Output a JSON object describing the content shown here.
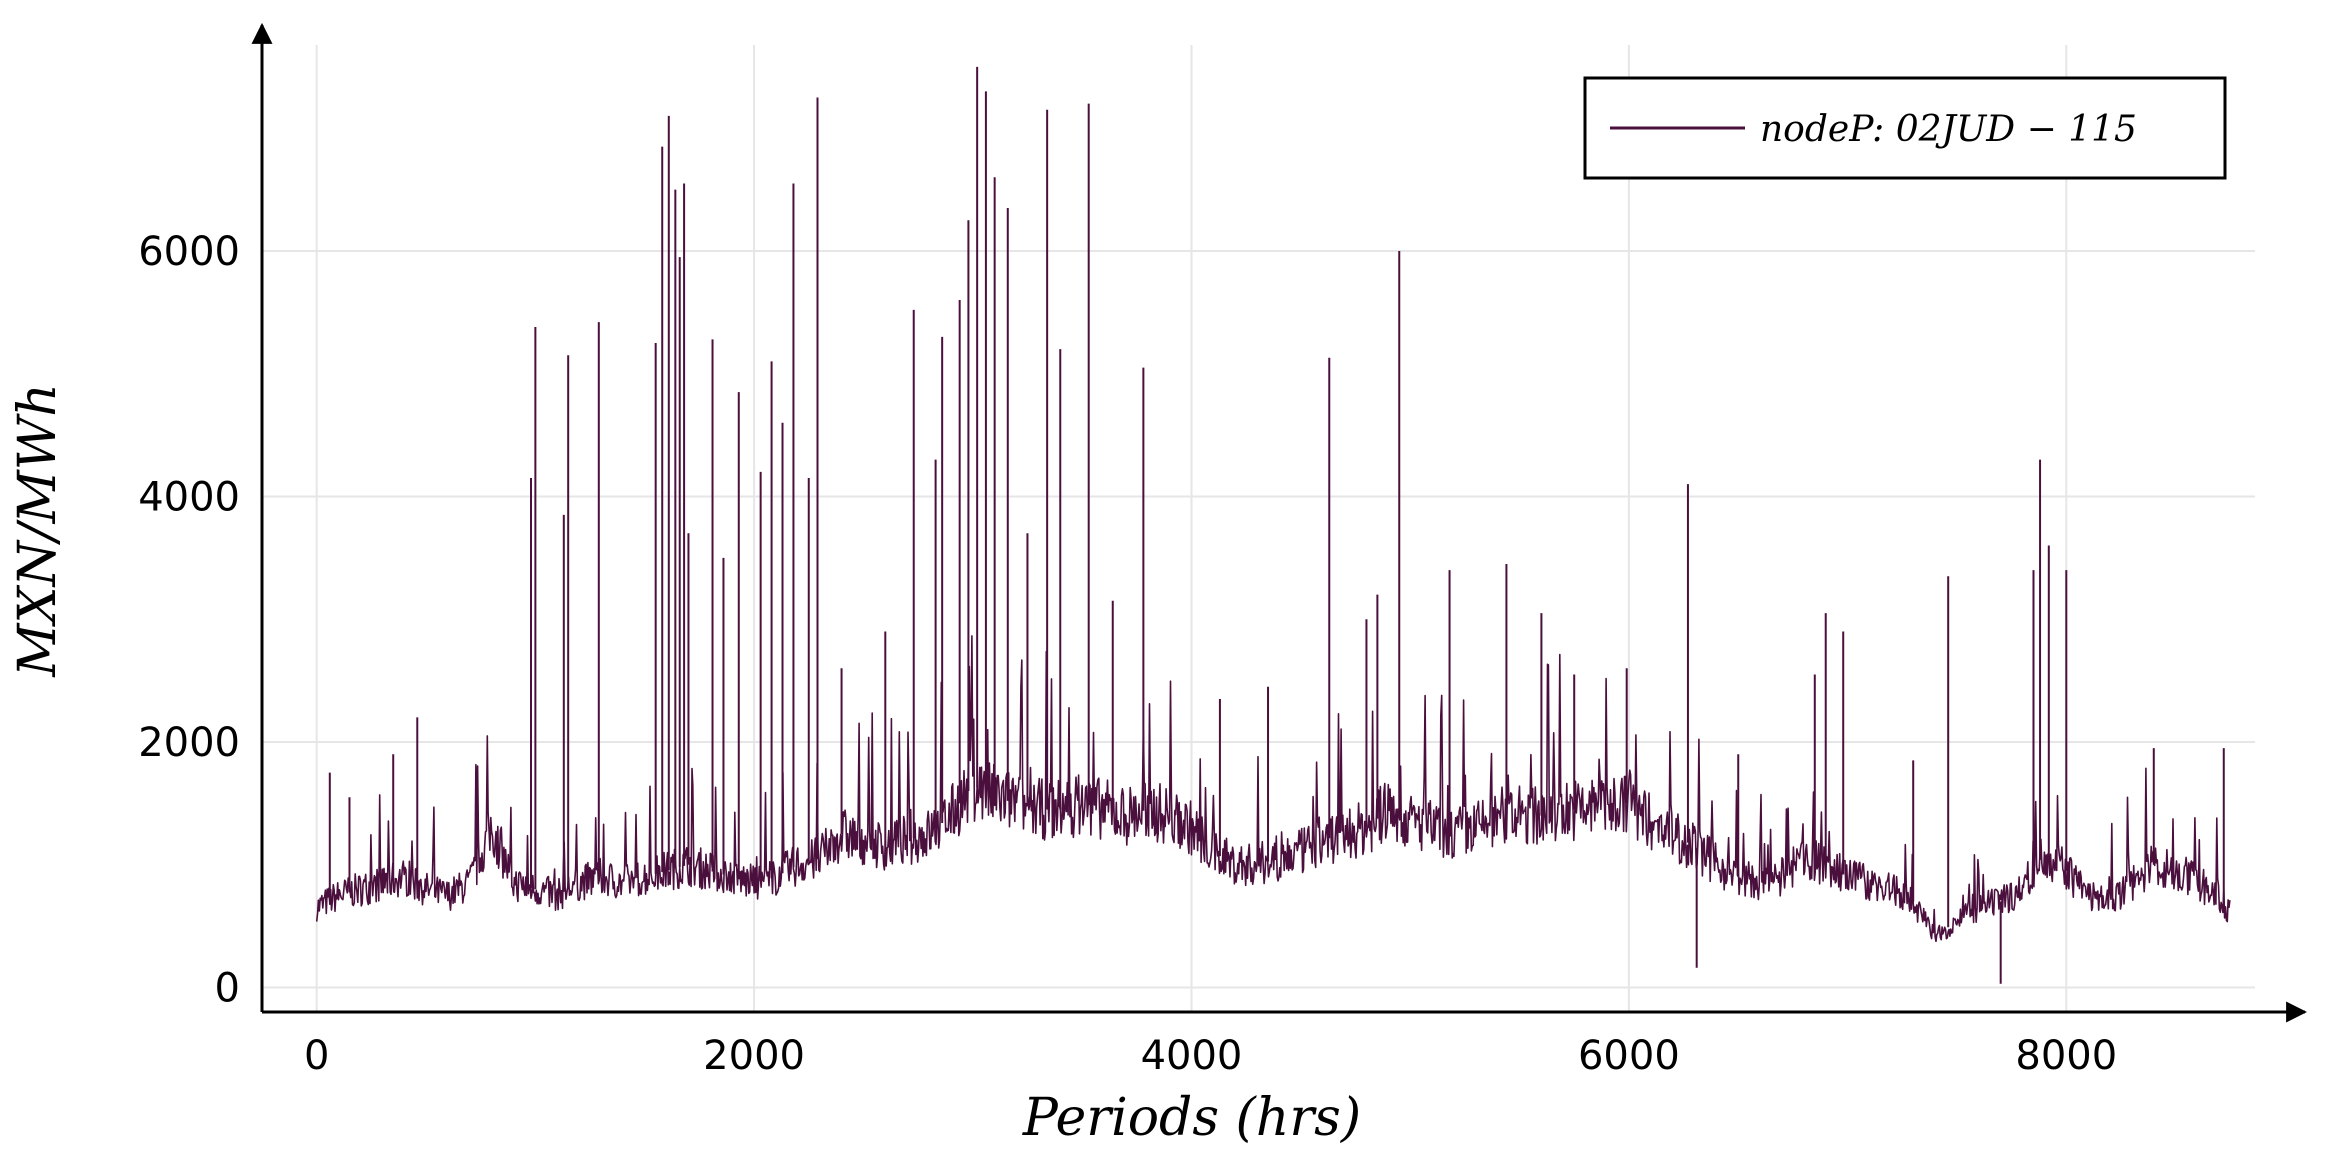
{
  "chart_data": {
    "type": "line",
    "xlabel": "Periods (hrs)",
    "ylabel": "MXN/MWh",
    "xlim": [
      -250,
      9000
    ],
    "ylim": [
      -200,
      7800
    ],
    "xticks": [
      0,
      2000,
      4000,
      6000,
      8000
    ],
    "yticks": [
      0,
      2000,
      4000,
      6000
    ],
    "grid": true,
    "legend_position": "top-right",
    "colors": {
      "series": "#4a0f3c",
      "axis": "#000000",
      "grid": "#e6e6e6"
    },
    "series": [
      {
        "name": "nodeP: 02JUD − 115",
        "x": [
          0,
          100,
          200,
          300,
          400,
          500,
          600,
          700,
          800,
          900,
          1000,
          1100,
          1200,
          1300,
          1400,
          1500,
          1600,
          1700,
          1800,
          1900,
          2000,
          2100,
          2200,
          2300,
          2400,
          2500,
          2600,
          2700,
          2800,
          2900,
          3000,
          3100,
          3200,
          3300,
          3400,
          3500,
          3600,
          3700,
          3800,
          3900,
          4000,
          4100,
          4200,
          4300,
          4400,
          4500,
          4600,
          4700,
          4800,
          4900,
          5000,
          5100,
          5200,
          5300,
          5400,
          5500,
          5600,
          5700,
          5800,
          5900,
          6000,
          6100,
          6200,
          6300,
          6400,
          6500,
          6600,
          6700,
          6800,
          6900,
          7000,
          7100,
          7200,
          7300,
          7400,
          7500,
          7600,
          7700,
          7800,
          7900,
          8000,
          8100,
          8200,
          8300,
          8400,
          8500,
          8600,
          8700,
          8750
        ],
        "y": [
          650,
          750,
          800,
          850,
          900,
          800,
          750,
          850,
          1300,
          850,
          800,
          750,
          850,
          900,
          850,
          900,
          950,
          1000,
          950,
          900,
          850,
          900,
          1000,
          1050,
          1250,
          1200,
          1150,
          1200,
          1250,
          1400,
          1650,
          1550,
          1500,
          1450,
          1450,
          1500,
          1450,
          1400,
          1450,
          1400,
          1300,
          1100,
          1000,
          1000,
          1050,
          1100,
          1200,
          1250,
          1300,
          1450,
          1350,
          1300,
          1250,
          1300,
          1350,
          1400,
          1400,
          1450,
          1450,
          1500,
          1500,
          1350,
          1250,
          1150,
          1000,
          900,
          850,
          900,
          1050,
          1000,
          900,
          850,
          800,
          700,
          400,
          550,
          650,
          700,
          800,
          1100,
          950,
          750,
          700,
          850,
          1000,
          950,
          850,
          750,
          600
        ],
        "spikes": [
          {
            "x": 60,
            "y": 1750
          },
          {
            "x": 150,
            "y": 1550
          },
          {
            "x": 350,
            "y": 1900
          },
          {
            "x": 460,
            "y": 2200
          },
          {
            "x": 980,
            "y": 4150
          },
          {
            "x": 1000,
            "y": 5380
          },
          {
            "x": 1130,
            "y": 3850
          },
          {
            "x": 1150,
            "y": 5150
          },
          {
            "x": 1290,
            "y": 5420
          },
          {
            "x": 1550,
            "y": 5250
          },
          {
            "x": 1580,
            "y": 6850
          },
          {
            "x": 1610,
            "y": 7100
          },
          {
            "x": 1640,
            "y": 6500
          },
          {
            "x": 1660,
            "y": 5950
          },
          {
            "x": 1680,
            "y": 6550
          },
          {
            "x": 1700,
            "y": 3700
          },
          {
            "x": 1810,
            "y": 5280
          },
          {
            "x": 1860,
            "y": 3500
          },
          {
            "x": 1930,
            "y": 4850
          },
          {
            "x": 2030,
            "y": 4200
          },
          {
            "x": 2080,
            "y": 5100
          },
          {
            "x": 2130,
            "y": 4600
          },
          {
            "x": 2180,
            "y": 6550
          },
          {
            "x": 2250,
            "y": 4150
          },
          {
            "x": 2290,
            "y": 7250
          },
          {
            "x": 2400,
            "y": 2600
          },
          {
            "x": 2600,
            "y": 2900
          },
          {
            "x": 2730,
            "y": 5520
          },
          {
            "x": 2830,
            "y": 4300
          },
          {
            "x": 2860,
            "y": 5300
          },
          {
            "x": 2940,
            "y": 5600
          },
          {
            "x": 2980,
            "y": 6250
          },
          {
            "x": 3020,
            "y": 7500
          },
          {
            "x": 3060,
            "y": 7300
          },
          {
            "x": 3100,
            "y": 6600
          },
          {
            "x": 3160,
            "y": 6350
          },
          {
            "x": 3250,
            "y": 3700
          },
          {
            "x": 3340,
            "y": 7150
          },
          {
            "x": 3400,
            "y": 5200
          },
          {
            "x": 3530,
            "y": 7200
          },
          {
            "x": 3640,
            "y": 3150
          },
          {
            "x": 3780,
            "y": 5050
          },
          {
            "x": 4130,
            "y": 2350
          },
          {
            "x": 4350,
            "y": 2450
          },
          {
            "x": 4630,
            "y": 5130
          },
          {
            "x": 4800,
            "y": 3000
          },
          {
            "x": 4850,
            "y": 3200
          },
          {
            "x": 4950,
            "y": 6000
          },
          {
            "x": 5180,
            "y": 3400
          },
          {
            "x": 5440,
            "y": 3450
          },
          {
            "x": 5600,
            "y": 3050
          },
          {
            "x": 5750,
            "y": 2550
          },
          {
            "x": 5990,
            "y": 2600
          },
          {
            "x": 6270,
            "y": 4100
          },
          {
            "x": 6310,
            "y": 160
          },
          {
            "x": 6500,
            "y": 1900
          },
          {
            "x": 6850,
            "y": 2550
          },
          {
            "x": 6900,
            "y": 3050
          },
          {
            "x": 6980,
            "y": 2900
          },
          {
            "x": 7300,
            "y": 1850
          },
          {
            "x": 7460,
            "y": 3350
          },
          {
            "x": 7700,
            "y": 30
          },
          {
            "x": 7850,
            "y": 3400
          },
          {
            "x": 7880,
            "y": 4300
          },
          {
            "x": 7920,
            "y": 3600
          },
          {
            "x": 8000,
            "y": 3400
          },
          {
            "x": 8400,
            "y": 1950
          },
          {
            "x": 8720,
            "y": 1950
          }
        ]
      }
    ]
  }
}
